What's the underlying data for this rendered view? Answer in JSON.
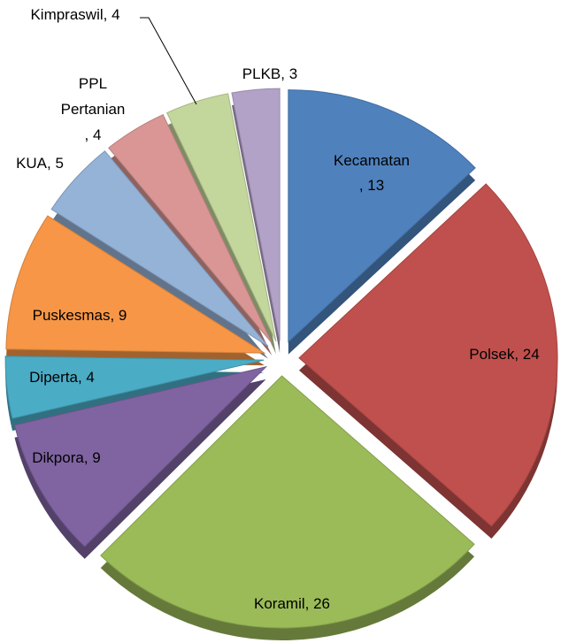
{
  "chart_data": {
    "type": "pie",
    "categories": [
      "Kecamatan",
      "Polsek",
      "Koramil",
      "Dikpora",
      "Diperta",
      "Puskesmas",
      "KUA",
      "PPL Pertanian",
      "Kimpraswil",
      "PLKB"
    ],
    "values": [
      13,
      24,
      26,
      9,
      4,
      9,
      5,
      4,
      4,
      3
    ],
    "value_labels": [
      ", 13",
      ", 24",
      ", 26",
      ", 9",
      ", 4",
      ", 9",
      ", 5",
      ", 4",
      ", 4",
      ", 3"
    ],
    "colors": [
      "#4f81bd",
      "#c0504d",
      "#9bbb59",
      "#8064a2",
      "#4bacc6",
      "#f79646",
      "#95b3d7",
      "#d99694",
      "#c3d69b",
      "#b3a2c7"
    ]
  }
}
